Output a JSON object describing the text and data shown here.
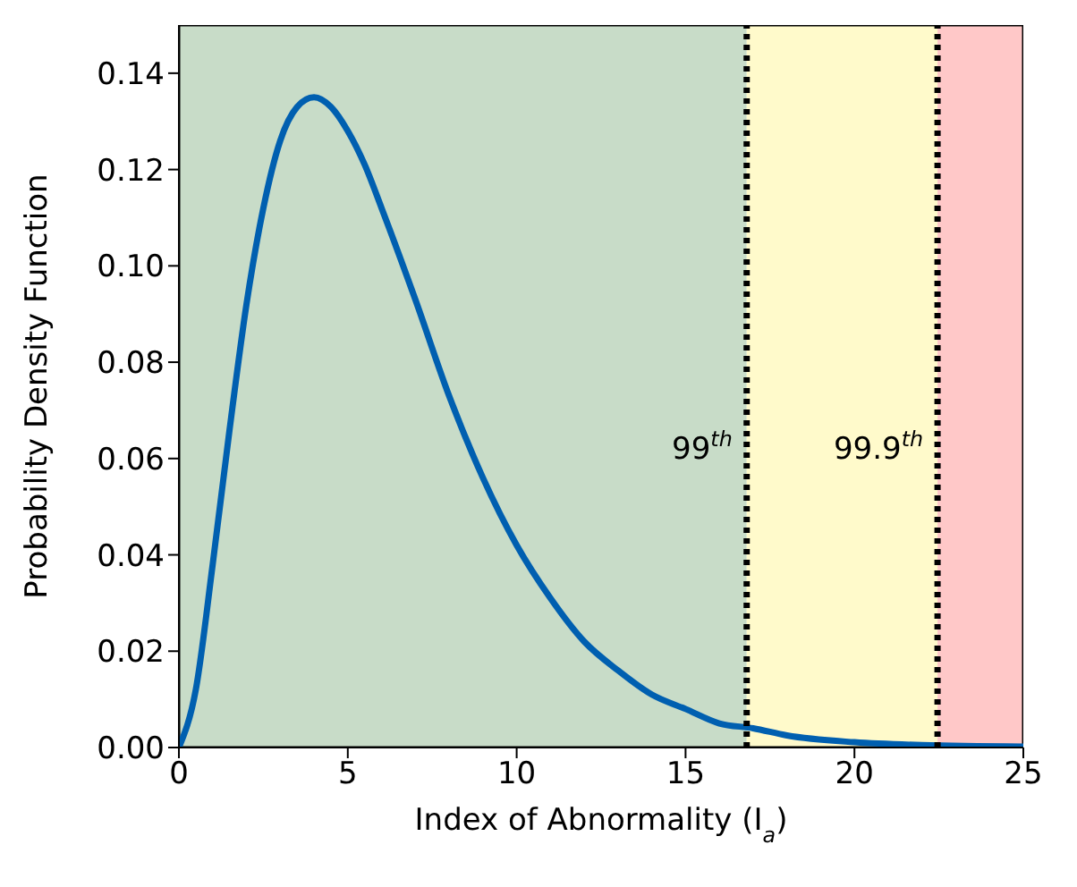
{
  "chart_data": {
    "type": "line",
    "xlabel": "Index of Abnormality (I$_{a}$)",
    "ylabel": "Probability Density Function",
    "x": [
      0,
      0.5,
      1,
      1.5,
      2,
      2.5,
      3,
      3.5,
      4,
      4.5,
      5,
      5.5,
      6,
      7,
      8,
      9,
      10,
      11,
      12,
      13,
      14,
      15,
      16,
      17,
      18,
      20,
      22,
      25
    ],
    "series": [
      {
        "color": "#005fb0",
        "values": [
          0,
          0.012,
          0.038,
          0.066,
          0.092,
          0.112,
          0.126,
          0.133,
          0.135,
          0.133,
          0.128,
          0.121,
          0.112,
          0.093,
          0.073,
          0.056,
          0.042,
          0.031,
          0.022,
          0.016,
          0.011,
          0.008,
          0.005,
          0.004,
          0.0025,
          0.0011,
          0.0005,
          0.0002
        ]
      }
    ],
    "xlim": [
      0,
      25
    ],
    "xticks": [
      0,
      5,
      10,
      15,
      20,
      25
    ],
    "ylim": [
      0,
      0.15
    ],
    "yticks": [
      {
        "value": 0,
        "label": "0.00"
      },
      0.02,
      0.04,
      0.06,
      0.08,
      {
        "value": 0.1,
        "label": "0.10"
      },
      0.12,
      0.14
    ],
    "bands": [
      {
        "axis": "x",
        "from": 0,
        "to": 16.81,
        "color": "#c8dcc8"
      },
      {
        "axis": "x",
        "from": 16.81,
        "to": 22.46,
        "color": "#fffacb"
      },
      {
        "axis": "x",
        "from": 22.46,
        "to": 25,
        "color": "#ffc8c8"
      }
    ],
    "ref_lines": [
      {
        "axis": "x",
        "value": 16.81,
        "label": "99$^{th}$",
        "color": "#000000",
        "line_style": "dotted"
      },
      {
        "axis": "x",
        "value": 22.46,
        "label": "99.9$^{th}$",
        "color": "#000000",
        "line_style": "dotted"
      }
    ],
    "grid": false,
    "legend": false,
    "marker": "none",
    "line_style": "solid"
  }
}
